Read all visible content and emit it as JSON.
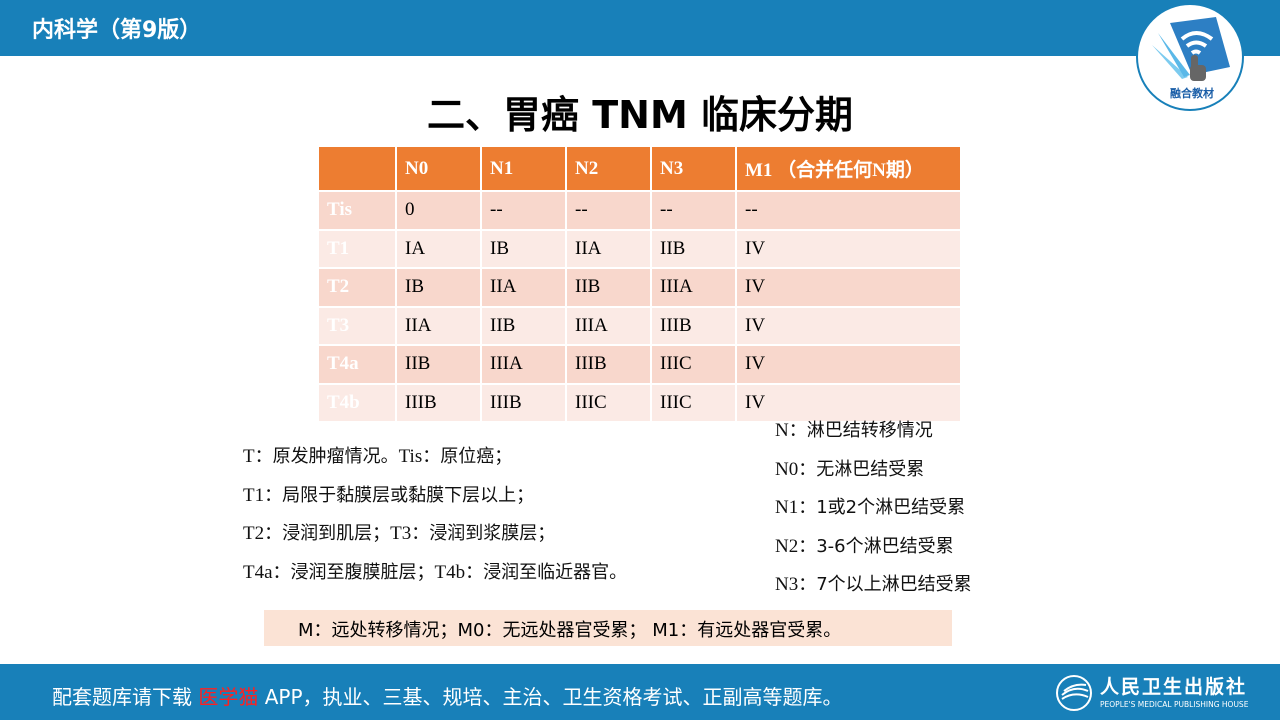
{
  "header": {
    "book_title": "内科学（第9版）",
    "logo_text": "融合教材"
  },
  "slide": {
    "title": "二、胃癌 TNM 临床分期",
    "table": {
      "columns": [
        "",
        "N0",
        "N1",
        "N2",
        "N3",
        "M1 （合并任何N期）"
      ],
      "rows": [
        [
          "Tis",
          "0",
          "--",
          "--",
          "--",
          "--"
        ],
        [
          "T1",
          "IA",
          "IB",
          "IIA",
          "IIB",
          "IV"
        ],
        [
          "T2",
          "IB",
          "IIA",
          "IIB",
          "IIIA",
          "IV"
        ],
        [
          "T3",
          "IIA",
          "IIB",
          "IIIA",
          "IIIB",
          "IV"
        ],
        [
          "T4a",
          "IIB",
          "IIIA",
          "IIIB",
          "IIIC",
          "IV"
        ],
        [
          "T4b",
          "IIIB",
          "IIIB",
          "IIIC",
          "IIIC",
          "IV"
        ]
      ]
    },
    "t_notes": [
      [
        "T",
        "：原发肿瘤情况。",
        "Tis",
        "：原位癌；"
      ],
      [
        "T1",
        "：局限于黏膜层或黏膜下层以上；",
        "",
        ""
      ],
      [
        "T2",
        "：浸润到肌层；",
        "T3",
        "：浸润到浆膜层；"
      ],
      [
        "T4a",
        "：浸润至腹膜脏层；",
        "T4b",
        "：浸润至临近器官。"
      ]
    ],
    "n_notes": [
      [
        "N",
        "：淋巴结转移情况"
      ],
      [
        "N0",
        "：无淋巴结受累"
      ],
      [
        "N1",
        "：1或2个淋巴结受累"
      ],
      [
        "N2",
        "：3-6个淋巴结受累"
      ],
      [
        "N3",
        "：7个以上淋巴结受累"
      ]
    ],
    "m_note": "M：远处转移情况；M0：无远处器官受累； M1：有远处器官受累。"
  },
  "footer": {
    "text_before": "配套题库请下载 ",
    "highlight": "医学猫",
    "text_after": " APP，执业、三基、规培、主治、卫生资格考试、正副高等题库。",
    "publisher_cn": "人民卫生出版社",
    "publisher_en": "PEOPLE'S MEDICAL PUBLISHING HOUSE"
  },
  "colors": {
    "brand_blue": "#1880b9",
    "table_orange": "#ed7d31",
    "highlight_red": "#ff2020"
  }
}
